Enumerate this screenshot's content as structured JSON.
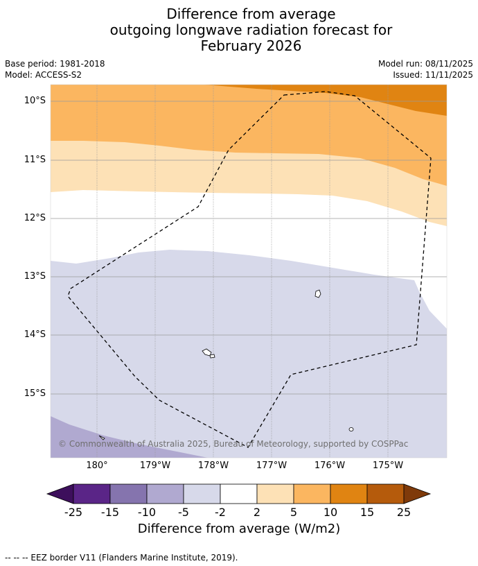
{
  "title": {
    "line1": "Difference from average",
    "line2": "outgoing longwave radiation forecast for",
    "line3": "February 2026"
  },
  "meta": {
    "base_period": "Base period: 1981-2018",
    "model": "Model: ACCESS-S2",
    "model_run": "Model run: 08/11/2025",
    "issued": "Issued: 11/11/2025"
  },
  "map": {
    "lat_labels": [
      "10°S",
      "11°S",
      "12°S",
      "13°S",
      "14°S",
      "15°S"
    ],
    "lon_labels": [
      "180°",
      "179°W",
      "178°W",
      "177°W",
      "176°W",
      "175°W"
    ],
    "copyright": "© Commonwealth of Australia 2025, Bureau of Meteorology, supported by COSPPac"
  },
  "colorbar": {
    "title": "Difference from average (W/m2)",
    "ticks": [
      "-25",
      "-15",
      "-10",
      "-5",
      "-2",
      "2",
      "5",
      "10",
      "15",
      "25"
    ],
    "colors": [
      "#3d0f5c",
      "#5a2587",
      "#8574ae",
      "#b0a9d0",
      "#d7d9ea",
      "#ffffff",
      "#fde1b6",
      "#fbb660",
      "#e08412",
      "#b55b0c",
      "#7f3a0a"
    ]
  },
  "footnote": "--  --  -- EEZ border V11 (Flanders Marine Institute, 2019)."
}
